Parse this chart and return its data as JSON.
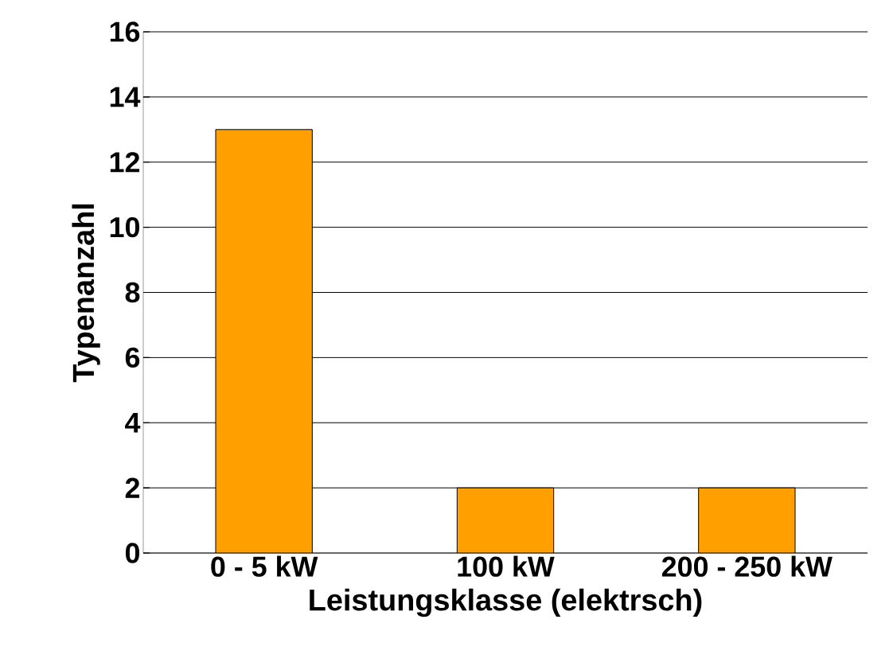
{
  "chart_data": {
    "type": "bar",
    "xlabel": "Leistungsklasse (elektrsch)",
    "ylabel": "Typenanzahl",
    "categories": [
      "0 - 5 kW",
      "100 kW",
      "200 - 250 kW"
    ],
    "values": [
      13,
      2,
      2
    ],
    "color": "#ffa000",
    "ylim": [
      0,
      16
    ],
    "yticks": [
      0,
      2,
      4,
      6,
      8,
      10,
      12,
      14,
      16
    ],
    "grid": "y"
  }
}
